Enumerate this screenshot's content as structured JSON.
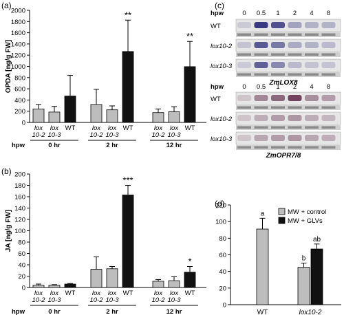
{
  "colors": {
    "wt": "#111111",
    "mutant": "#bdbdbd",
    "blot_bg": "#e6e6e6",
    "band_loading": "#8a8a8a"
  },
  "chart_data": [
    {
      "panel": "(a)",
      "type": "bar",
      "ylabel": "OPDA [ng/g FW]",
      "ylim": [
        0,
        2000
      ],
      "yticks": [
        0,
        200,
        400,
        600,
        800,
        1000,
        1200,
        1400,
        1600,
        1800,
        2000
      ],
      "group_axis_label": "hpw",
      "groups": [
        "0 hr",
        "2 hr",
        "12 hr"
      ],
      "bar_labels": [
        [
          "lox",
          "10-2"
        ],
        [
          "lox",
          "10-3"
        ],
        [
          "WT"
        ]
      ],
      "series": [
        {
          "group": "0 hr",
          "values": [
            240,
            185,
            470
          ],
          "errors": [
            80,
            100,
            370
          ],
          "sig": [
            "",
            "",
            ""
          ]
        },
        {
          "group": "2 hr",
          "values": [
            320,
            225,
            1265
          ],
          "errors": [
            270,
            70,
            560
          ],
          "sig": [
            "",
            "",
            "**"
          ]
        },
        {
          "group": "12 hr",
          "values": [
            175,
            190,
            995
          ],
          "errors": [
            65,
            90,
            450
          ],
          "sig": [
            "",
            "",
            "**"
          ]
        }
      ]
    },
    {
      "panel": "(b)",
      "type": "bar",
      "ylabel": "JA [ng/g FW]",
      "ylim": [
        0,
        200
      ],
      "yticks": [
        0,
        20,
        40,
        60,
        80,
        100,
        120,
        140,
        160,
        180,
        200
      ],
      "group_axis_label": "hpw",
      "groups": [
        "0 hr",
        "2 hr",
        "12 hr"
      ],
      "bar_labels": [
        [
          "lox",
          "10-2"
        ],
        [
          "lox",
          "10-3"
        ],
        [
          "WT"
        ]
      ],
      "series": [
        {
          "group": "0 hr",
          "values": [
            4,
            4,
            6
          ],
          "errors": [
            2,
            1,
            1
          ],
          "sig": [
            "",
            "",
            ""
          ]
        },
        {
          "group": "2 hr",
          "values": [
            32,
            33,
            163
          ],
          "errors": [
            22,
            4,
            17
          ],
          "sig": [
            "",
            "",
            "***"
          ]
        },
        {
          "group": "12 hr",
          "values": [
            11,
            12,
            27
          ],
          "errors": [
            3,
            7,
            10
          ],
          "sig": [
            "",
            "",
            "*"
          ]
        }
      ]
    },
    {
      "panel": "(d)",
      "type": "bar",
      "ylabel": "",
      "ylim": [
        0,
        120
      ],
      "yticks": [
        0,
        20,
        40,
        60,
        80,
        100,
        120
      ],
      "categories": [
        "WT",
        "lox10-2"
      ],
      "legend_position": "top-right",
      "series": [
        {
          "name": "MW + control",
          "values": [
            91,
            45
          ],
          "errors": [
            13,
            5
          ],
          "letters": [
            "a",
            "b"
          ]
        },
        {
          "name": "MW + GLVs",
          "values": [
            null,
            67
          ],
          "errors": [
            null,
            6
          ],
          "letters": [
            "",
            "ab"
          ]
        }
      ]
    }
  ],
  "blots": {
    "panel": "(c)",
    "hpw_label": "hpw",
    "timepoints": [
      "0",
      "0.5",
      "1",
      "2",
      "4",
      "8"
    ],
    "blot1": {
      "gene": "ZmLOX8",
      "rows": [
        {
          "label": "WT",
          "intensity": [
            0.05,
            0.95,
            0.8,
            0.3,
            0.2,
            0.2
          ]
        },
        {
          "label": "lox10-2",
          "intensity": [
            0.1,
            0.75,
            0.55,
            0.25,
            0.2,
            0.15
          ]
        },
        {
          "label": "lox10-3",
          "intensity": [
            0.05,
            0.7,
            0.45,
            0.15,
            0.1,
            0.1
          ]
        }
      ]
    },
    "blot2": {
      "gene": "ZmOPR7/8",
      "rows": [
        {
          "label": "WT",
          "intensity": [
            0.1,
            0.5,
            0.7,
            0.95,
            0.45,
            0.35
          ]
        },
        {
          "label": "lox10-2",
          "intensity": [
            0.1,
            0.25,
            0.35,
            0.4,
            0.25,
            0.2
          ]
        },
        {
          "label": "lox10-3",
          "intensity": [
            0.1,
            0.3,
            0.35,
            0.4,
            0.3,
            0.25
          ]
        }
      ]
    }
  }
}
